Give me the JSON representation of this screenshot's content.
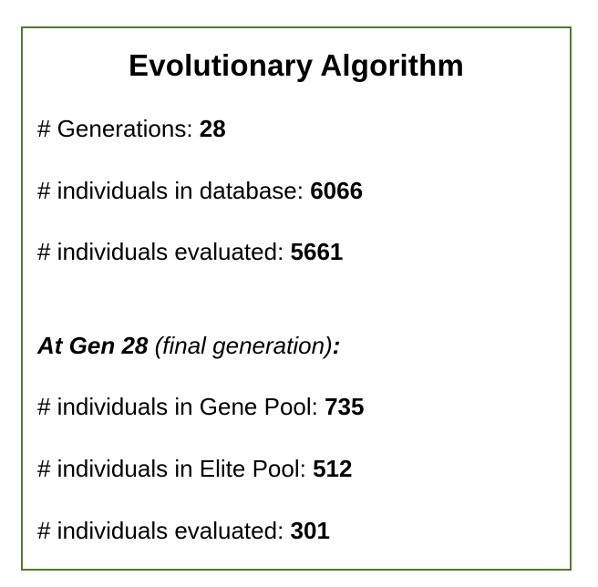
{
  "title": "Evolutionary Algorithm",
  "summary": {
    "generations_label": "# Generations: ",
    "generations_value": "28",
    "db_label": "# individuals in database: ",
    "db_value": "6066",
    "evaluated_label": "# individuals evaluated: ",
    "evaluated_value": "5661"
  },
  "final_gen": {
    "heading_bold": "At Gen 28",
    "heading_note": " (final generation)",
    "heading_colon": ":",
    "gene_pool_label": "# individuals in Gene Pool: ",
    "gene_pool_value": "735",
    "elite_pool_label": "# individuals in Elite Pool: ",
    "elite_pool_value": "512",
    "evaluated_label": "# individuals evaluated: ",
    "evaluated_value": "301"
  },
  "colors": {
    "border": "#4f7a2a",
    "text": "#000000",
    "background": "#ffffff"
  }
}
